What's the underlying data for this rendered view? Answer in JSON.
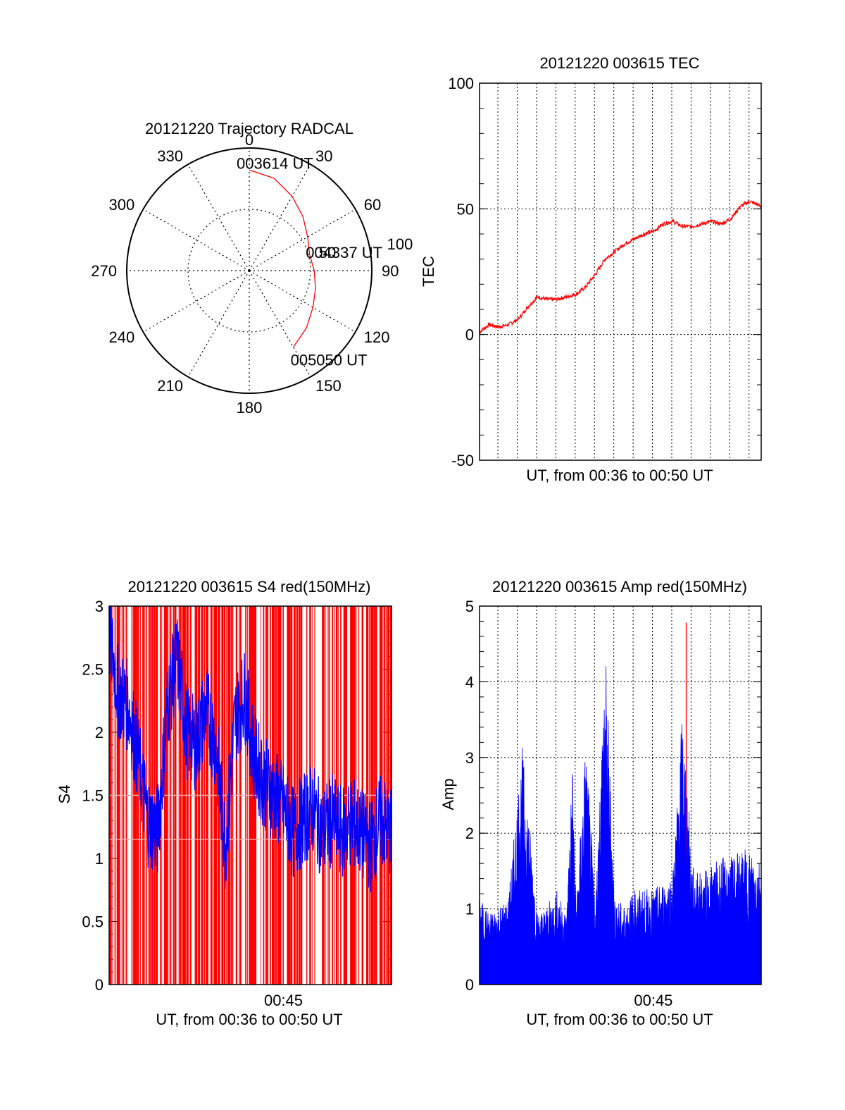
{
  "figure": {
    "background": "#ffffff"
  },
  "chart_data": [
    {
      "type": "polar",
      "title": "20121220 Trajectory RADCAL",
      "angle_labels": [
        "0",
        "30",
        "60",
        "90",
        "120",
        "150",
        "180",
        "210",
        "240",
        "270",
        "300",
        "330"
      ],
      "radial_labels": [
        "50",
        "100"
      ],
      "radial_max": 100,
      "track_color": "#ff0000",
      "track": {
        "azimuth_deg": [
          0,
          15,
          30,
          45,
          60,
          75,
          90,
          105,
          120,
          135,
          150
        ],
        "zenith": [
          82,
          78,
          70,
          62,
          55,
          51,
          53,
          56,
          60,
          66,
          72
        ]
      },
      "annotations": [
        {
          "text": "003614 UT",
          "azimuth_deg": 0,
          "zenith": 82
        },
        {
          "text": "004337 UT",
          "azimuth_deg": 90,
          "zenith": 53
        },
        {
          "text": "005050 UT",
          "azimuth_deg": 150,
          "zenith": 72
        }
      ]
    },
    {
      "type": "line",
      "title": "20121220 003615 TEC",
      "xlabel": "UT, from 00:36 to 00:50 UT",
      "ylabel": "TEC",
      "xlim": [
        0,
        14.58
      ],
      "ylim": [
        -50,
        100
      ],
      "yticks": [
        "-50",
        "0",
        "50",
        "100"
      ],
      "grid": true,
      "series": [
        {
          "color": "#ff0000",
          "x": [
            0,
            0.5,
            1,
            1.5,
            2,
            2.5,
            3,
            3.5,
            4,
            4.5,
            5,
            5.5,
            6,
            6.5,
            7,
            7.5,
            8,
            8.5,
            9,
            9.5,
            10,
            10.5,
            11,
            11.5,
            12,
            12.5,
            13,
            13.5,
            14,
            14.58
          ],
          "values": [
            1,
            4,
            3,
            4,
            6,
            11,
            15,
            14,
            14,
            15,
            16,
            19,
            24,
            30,
            33,
            36,
            38,
            40,
            41,
            44,
            45,
            43,
            43,
            44,
            45,
            44,
            46,
            51,
            53,
            51
          ]
        }
      ]
    },
    {
      "type": "bar",
      "title": "20121220 003615 S4 red(150MHz)",
      "xlabel": "UT, from 00:36 to 00:50 UT",
      "ylabel": "S4",
      "xlim": [
        0,
        14.58
      ],
      "ylim": [
        0,
        3
      ],
      "xticks": [
        {
          "x": 9,
          "label": "00:45"
        }
      ],
      "yticks": [
        "0",
        "0.5",
        "1",
        "1.5",
        "2",
        "2.5",
        "3"
      ],
      "fill_color": "#ff0000",
      "line_color": "#0000ff",
      "series": [
        {
          "color": "#0000ff",
          "x": [
            0,
            0.5,
            1,
            1.5,
            2,
            2.5,
            3,
            3.5,
            4,
            4.5,
            5,
            5.5,
            6,
            6.5,
            7,
            7.5,
            8,
            8.5,
            9,
            9.5,
            10,
            10.5,
            11,
            11.5,
            12,
            12.5,
            13,
            13.5,
            14,
            14.58
          ],
          "values": [
            2.8,
            2.3,
            2.2,
            1.8,
            1.3,
            1.2,
            2.2,
            2.6,
            2.0,
            1.9,
            2.2,
            1.9,
            1.1,
            2.1,
            2.3,
            1.8,
            1.6,
            1.5,
            1.4,
            1.2,
            1.3,
            1.4,
            1.2,
            1.3,
            1.2,
            1.3,
            1.2,
            1.1,
            1.3,
            1.2
          ]
        }
      ]
    },
    {
      "type": "bar",
      "title": "20121220 003615 Amp red(150MHz)",
      "xlabel": "UT, from 00:36 to 00:50 UT",
      "ylabel": "Amp",
      "xlim": [
        0,
        14.58
      ],
      "ylim": [
        0,
        5
      ],
      "xticks": [
        {
          "x": 9,
          "label": "00:45"
        }
      ],
      "yticks": [
        "0",
        "1",
        "2",
        "3",
        "4",
        "5"
      ],
      "grid": true,
      "series": [
        {
          "name": "red",
          "color": "#ff0000",
          "x": [
            10.7
          ],
          "values": [
            4.78
          ]
        },
        {
          "name": "blue",
          "color": "#0000ff",
          "x": [
            0,
            0.5,
            1,
            1.5,
            2,
            2.2,
            2.5,
            3,
            3.5,
            4,
            4.5,
            4.8,
            5,
            5.5,
            6,
            6.5,
            7,
            7.5,
            8,
            8.5,
            9,
            9.5,
            10,
            10.5,
            10.75,
            11,
            11.5,
            12,
            12.5,
            13,
            13.5,
            14,
            14.58
          ],
          "values": [
            1.1,
            0.9,
            1.0,
            1.1,
            2.5,
            3.0,
            2.3,
            0.9,
            1.0,
            1.2,
            0.9,
            2.9,
            1.0,
            3.1,
            1.0,
            4.38,
            1.1,
            1.0,
            1.2,
            1.2,
            1.2,
            1.3,
            1.4,
            3.5,
            2.6,
            1.5,
            1.4,
            1.5,
            1.6,
            1.6,
            1.7,
            1.7,
            1.6
          ]
        }
      ]
    }
  ]
}
